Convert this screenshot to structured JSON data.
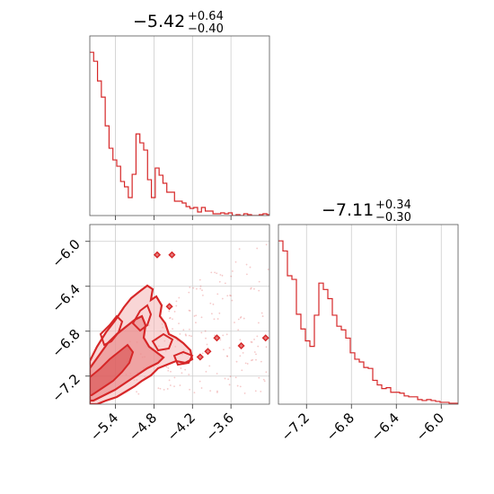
{
  "chart_data": {
    "type": "corner",
    "color": "#d62728",
    "panels": [
      {
        "id": "hist_param1",
        "type": "histogram",
        "title": {
          "value": "−5.42",
          "plus": "+0.64",
          "minus": "−0.40"
        },
        "xlim": [
          -5.8,
          -3.0
        ],
        "gridlines_x": [
          -5.4,
          -4.8,
          -4.2,
          -3.6
        ],
        "bins": [
          -5.8,
          -5.74,
          -5.68,
          -5.62,
          -5.56,
          -5.5,
          -5.44,
          -5.38,
          -5.32,
          -5.26,
          -5.2,
          -5.14,
          -5.08,
          -5.02,
          -4.96,
          -4.9,
          -4.84,
          -4.78,
          -4.72,
          -4.66,
          -4.6,
          -4.54,
          -4.48,
          -4.42,
          -4.36,
          -4.3,
          -4.24,
          -4.18,
          -4.12,
          -4.06,
          -4.0,
          -3.94,
          -3.88,
          -3.82,
          -3.76,
          -3.7,
          -3.64,
          -3.58,
          -3.52,
          -3.46,
          -3.4,
          -3.34,
          -3.28,
          -3.22,
          -3.16,
          -3.1,
          -3.04,
          -3.0
        ],
        "counts": [
          182,
          172,
          150,
          132,
          100,
          75,
          62,
          55,
          38,
          32,
          20,
          46,
          91,
          81,
          73,
          40,
          20,
          53,
          45,
          36,
          26,
          26,
          16,
          16,
          14,
          10,
          8,
          9,
          4,
          9,
          5,
          5,
          2,
          2,
          3,
          2,
          3,
          0,
          1,
          0,
          2,
          1,
          0,
          0,
          1,
          2,
          1
        ]
      },
      {
        "id": "hist_param2",
        "type": "histogram",
        "title": {
          "value": "−7.11",
          "plus": "+0.34",
          "minus": "−0.30"
        },
        "xlim": [
          -7.45,
          -5.85
        ],
        "gridlines_x": [
          -7.2,
          -6.8,
          -6.4,
          -6.0
        ],
        "bins": [
          -7.45,
          -7.41,
          -7.37,
          -7.33,
          -7.29,
          -7.25,
          -7.21,
          -7.17,
          -7.13,
          -7.09,
          -7.05,
          -7.01,
          -6.97,
          -6.93,
          -6.89,
          -6.85,
          -6.81,
          -6.77,
          -6.73,
          -6.69,
          -6.65,
          -6.61,
          -6.57,
          -6.53,
          -6.49,
          -6.45,
          -6.41,
          -6.37,
          -6.33,
          -6.29,
          -6.25,
          -6.21,
          -6.17,
          -6.13,
          -6.09,
          -6.05,
          -6.01,
          -5.97,
          -5.93,
          -5.89,
          -5.85
        ],
        "counts": [
          178,
          167,
          140,
          136,
          98,
          82,
          69,
          63,
          97,
          132,
          125,
          115,
          97,
          85,
          81,
          72,
          56,
          49,
          46,
          40,
          39,
          26,
          21,
          17,
          18,
          13,
          13,
          12,
          9,
          8,
          8,
          5,
          4,
          5,
          4,
          3,
          2,
          2,
          1,
          1
        ]
      },
      {
        "id": "contour_2d",
        "type": "2d-density",
        "xlim": [
          -5.8,
          -3.0
        ],
        "ylim": [
          -7.45,
          -5.85
        ],
        "gridlines_x": [
          -5.4,
          -4.8,
          -4.2,
          -3.6
        ],
        "gridlines_y": [
          -6.0,
          -6.4,
          -6.8,
          -7.2
        ],
        "hotspots": [
          {
            "x": -4.75,
            "y": -6.12
          },
          {
            "x": -4.52,
            "y": -6.12
          },
          {
            "x": -4.56,
            "y": -6.58
          },
          {
            "x": -3.96,
            "y": -6.98
          },
          {
            "x": -3.82,
            "y": -6.86
          },
          {
            "x": -3.44,
            "y": -6.93
          },
          {
            "x": -3.06,
            "y": -6.86
          },
          {
            "x": -4.08,
            "y": -7.03
          }
        ]
      }
    ],
    "x_ticks_bottom_left": [
      "−5.4",
      "−4.8",
      "−4.2",
      "−3.6"
    ],
    "y_ticks_left": [
      "−6.0",
      "−6.4",
      "−6.8",
      "−7.2"
    ],
    "x_ticks_bottom_right": [
      "−7.2",
      "−6.8",
      "−6.4",
      "−6.0"
    ]
  }
}
